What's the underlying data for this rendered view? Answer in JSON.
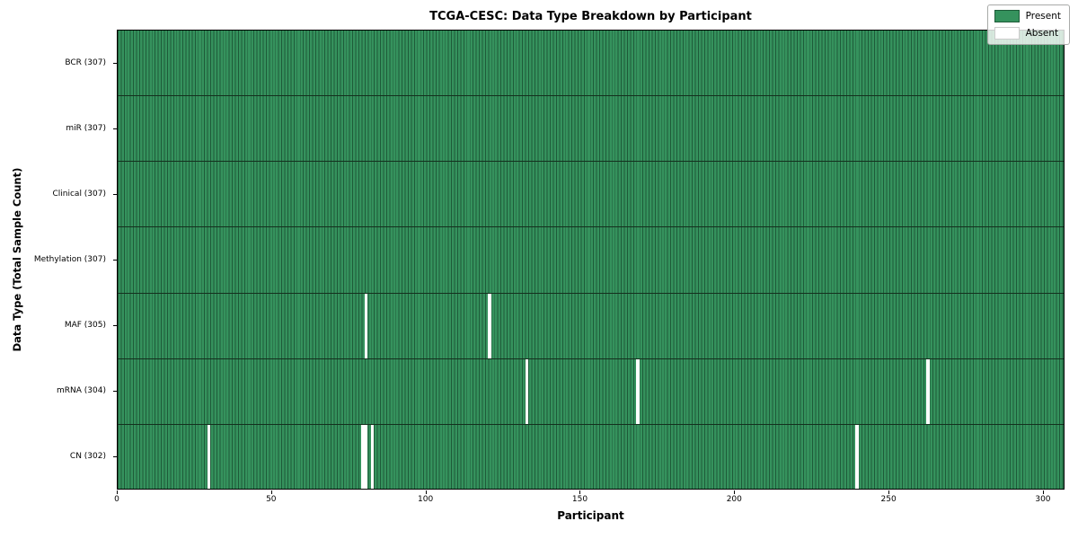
{
  "title": "TCGA-CESC: Data Type Breakdown by Participant",
  "xlabel": "Participant",
  "ylabel": "Data Type (Total Sample Count)",
  "legend": {
    "position": "upper right",
    "present_label": "Present",
    "absent_label": "Absent"
  },
  "colors": {
    "present": "#35925D",
    "absent": "#FFFFFF",
    "cell_edge": "#1E5B39",
    "row_divider": "#14301E",
    "plot_border": "#000000",
    "legend_bg": "rgba(255,255,255,0.8)",
    "legend_border": "#A8AAA8"
  },
  "chart_data": {
    "type": "heatmap",
    "title": "TCGA-CESC: Data Type Breakdown by Participant",
    "xlabel": "Participant",
    "ylabel": "Data Type (Total Sample Count)",
    "n_participants": 307,
    "x_ticks": [
      0,
      50,
      100,
      150,
      200,
      250,
      300
    ],
    "grid": false,
    "legend_entries": [
      "Present",
      "Absent"
    ],
    "legend_position": "upper right",
    "value_legend": {
      "present": 1,
      "absent": 0
    },
    "rows": [
      {
        "label": "BCR (307)",
        "present_count": 307,
        "absent_participants": []
      },
      {
        "label": "miR (307)",
        "present_count": 307,
        "absent_participants": []
      },
      {
        "label": "Clinical (307)",
        "present_count": 307,
        "absent_participants": []
      },
      {
        "label": "Methylation (307)",
        "present_count": 307,
        "absent_participants": []
      },
      {
        "label": "MAF (305)",
        "present_count": 305,
        "absent_participants": [
          80,
          120
        ]
      },
      {
        "label": "mRNA (304)",
        "present_count": 304,
        "absent_participants": [
          132,
          168,
          262
        ]
      },
      {
        "label": "CN (302)",
        "present_count": 302,
        "absent_participants": [
          29,
          79,
          80,
          82,
          239
        ]
      }
    ]
  }
}
